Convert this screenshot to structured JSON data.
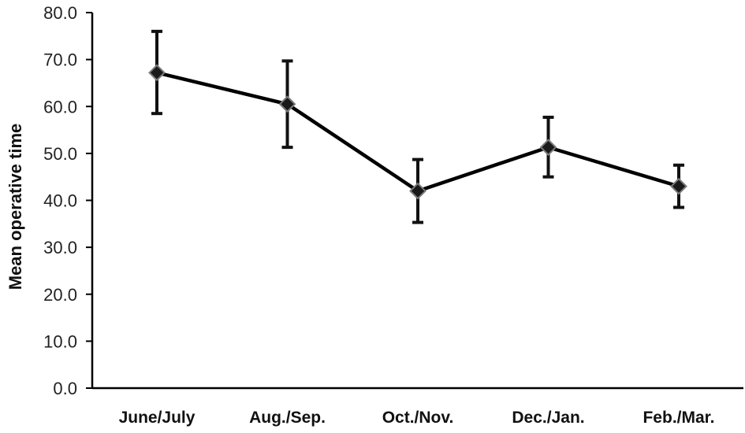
{
  "chart_data": {
    "type": "line",
    "title": "",
    "xlabel": "",
    "ylabel": "Mean operative time",
    "ylim": [
      0,
      80
    ],
    "yticks": [
      "0.0",
      "10.0",
      "20.0",
      "30.0",
      "40.0",
      "50.0",
      "60.0",
      "70.0",
      "80.0"
    ],
    "categories": [
      "June/July",
      "Aug./Sep.",
      "Oct./Nov.",
      "Dec./Jan.",
      "Feb./Mar."
    ],
    "series": [
      {
        "values": [
          67.2,
          60.5,
          42.0,
          51.3,
          43.0
        ],
        "error_low": [
          58.5,
          51.3,
          35.3,
          45.0,
          38.5
        ],
        "error_high": [
          76.0,
          69.7,
          48.7,
          57.7,
          47.5
        ]
      }
    ],
    "grid": false,
    "legend": "none",
    "colors": {
      "line": "#000000",
      "marker": "#1a1a1a",
      "marker_stroke": "#7a7a7a",
      "axis": "#000000"
    }
  }
}
